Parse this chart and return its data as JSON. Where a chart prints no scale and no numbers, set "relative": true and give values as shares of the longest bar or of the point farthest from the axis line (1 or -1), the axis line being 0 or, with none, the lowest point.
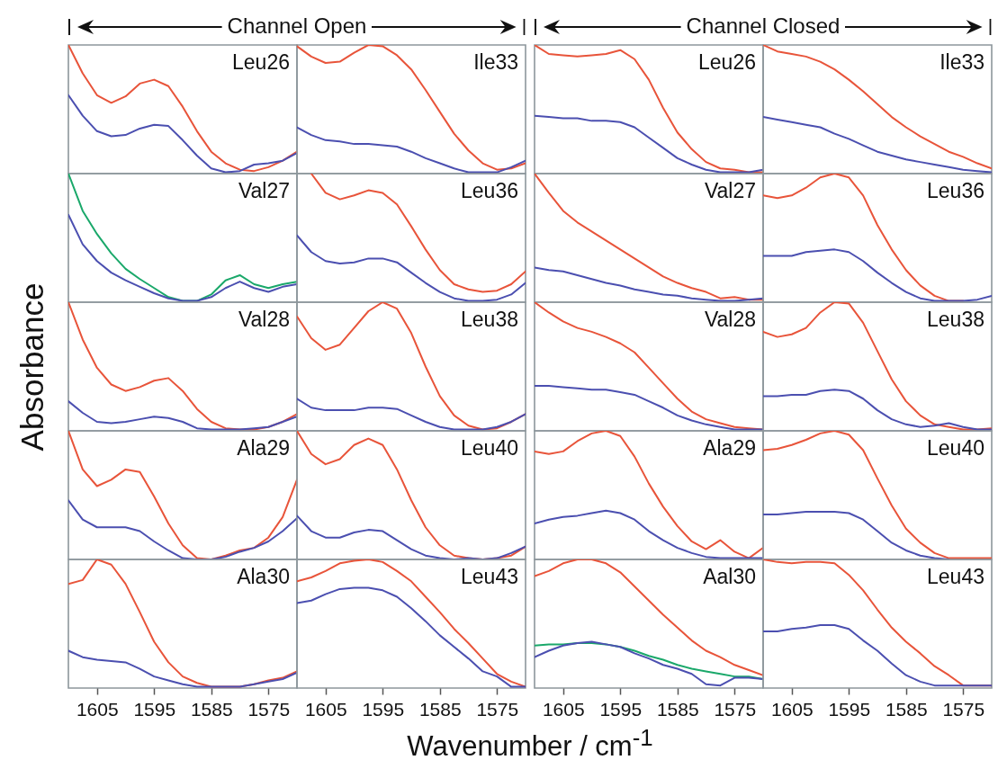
{
  "chart_data": [
    {
      "type": "line",
      "title": "Leu26",
      "relative": true,
      "annotations": [
        "Channel Open"
      ],
      "tick_labels": false,
      "xlim": [
        1610,
        1570
      ],
      "xticks": [
        1605,
        1595,
        1585,
        1575
      ],
      "x": [
        1610,
        1607.5,
        1605,
        1602.5,
        1600,
        1597.5,
        1595,
        1592.5,
        1590,
        1587.5,
        1585,
        1582.5,
        1580,
        1577.5,
        1575,
        1572.5,
        1570
      ],
      "series": [
        {
          "color": "#e8543a",
          "values": [
            1,
            0.78,
            0.61,
            0.55,
            0.6,
            0.7,
            0.73,
            0.68,
            0.52,
            0.33,
            0.17,
            0.08,
            0.03,
            0.02,
            0.05,
            0.1,
            0.17
          ]
        },
        {
          "color": "#4b4fb0",
          "values": [
            0.61,
            0.45,
            0.33,
            0.29,
            0.3,
            0.35,
            0.38,
            0.37,
            0.26,
            0.14,
            0.04,
            0.01,
            0.02,
            0.07,
            0.08,
            0.1,
            0.16
          ]
        }
      ]
    },
    {
      "type": "line",
      "title": "Ile33",
      "relative": true,
      "tick_labels": false,
      "xlim": [
        1610,
        1570
      ],
      "xticks": [
        1605,
        1595,
        1585,
        1575
      ],
      "x": [
        1610,
        1607.5,
        1605,
        1602.5,
        1600,
        1597.5,
        1595,
        1592.5,
        1590,
        1587.5,
        1585,
        1582.5,
        1580,
        1577.5,
        1575,
        1572.5,
        1570
      ],
      "series": [
        {
          "color": "#e8543a",
          "values": [
            0.99,
            0.91,
            0.86,
            0.87,
            0.94,
            1,
            0.99,
            0.92,
            0.81,
            0.65,
            0.48,
            0.31,
            0.18,
            0.08,
            0.03,
            0.04,
            0.08
          ]
        },
        {
          "color": "#4b4fb0",
          "values": [
            0.36,
            0.3,
            0.26,
            0.25,
            0.23,
            0.23,
            0.22,
            0.21,
            0.17,
            0.12,
            0.08,
            0.04,
            0.01,
            0.01,
            0.01,
            0.05,
            0.1
          ]
        }
      ]
    },
    {
      "type": "line",
      "title": "Leu26",
      "relative": true,
      "annotations": [
        "Channel Closed"
      ],
      "tick_labels": false,
      "xlim": [
        1610,
        1570
      ],
      "xticks": [
        1605,
        1595,
        1585,
        1575
      ],
      "x": [
        1610,
        1607.5,
        1605,
        1602.5,
        1600,
        1597.5,
        1595,
        1592.5,
        1590,
        1587.5,
        1585,
        1582.5,
        1580,
        1577.5,
        1575,
        1572.5,
        1570
      ],
      "series": [
        {
          "color": "#e8543a",
          "values": [
            1,
            0.93,
            0.92,
            0.91,
            0.92,
            0.93,
            0.96,
            0.89,
            0.73,
            0.51,
            0.32,
            0.19,
            0.09,
            0.04,
            0.03,
            0.01,
            0.01
          ]
        },
        {
          "color": "#4b4fb0",
          "values": [
            0.45,
            0.44,
            0.43,
            0.43,
            0.41,
            0.41,
            0.4,
            0.36,
            0.28,
            0.2,
            0.12,
            0.07,
            0.03,
            0.01,
            0.01,
            0.01,
            0.03
          ]
        }
      ]
    },
    {
      "type": "line",
      "title": "Ile33",
      "relative": true,
      "tick_labels": false,
      "xlim": [
        1610,
        1570
      ],
      "xticks": [
        1605,
        1595,
        1585,
        1575
      ],
      "x": [
        1610,
        1607.5,
        1605,
        1602.5,
        1600,
        1597.5,
        1595,
        1592.5,
        1590,
        1587.5,
        1585,
        1582.5,
        1580,
        1577.5,
        1575,
        1572.5,
        1570
      ],
      "series": [
        {
          "color": "#e8543a",
          "values": [
            1,
            0.95,
            0.93,
            0.91,
            0.87,
            0.81,
            0.73,
            0.64,
            0.54,
            0.44,
            0.36,
            0.29,
            0.23,
            0.17,
            0.13,
            0.08,
            0.04
          ]
        },
        {
          "color": "#4b4fb0",
          "values": [
            0.44,
            0.42,
            0.4,
            0.38,
            0.36,
            0.31,
            0.27,
            0.22,
            0.17,
            0.14,
            0.11,
            0.09,
            0.07,
            0.05,
            0.03,
            0.02,
            0.01
          ]
        }
      ]
    },
    {
      "type": "line",
      "title": "Val27",
      "relative": true,
      "tick_labels": false,
      "xlim": [
        1610,
        1570
      ],
      "xticks": [
        1605,
        1595,
        1585,
        1575
      ],
      "x": [
        1610,
        1607.5,
        1605,
        1602.5,
        1600,
        1597.5,
        1595,
        1592.5,
        1590,
        1587.5,
        1585,
        1582.5,
        1580,
        1577.5,
        1575,
        1572.5,
        1570
      ],
      "series": [
        {
          "color": "#1aa86a",
          "values": [
            1,
            0.71,
            0.53,
            0.38,
            0.26,
            0.18,
            0.11,
            0.04,
            0.01,
            0.01,
            0.06,
            0.17,
            0.21,
            0.14,
            0.11,
            0.14,
            0.16
          ]
        },
        {
          "color": "#4b4fb0",
          "values": [
            0.68,
            0.45,
            0.32,
            0.23,
            0.17,
            0.12,
            0.07,
            0.03,
            0.01,
            0.01,
            0.04,
            0.11,
            0.16,
            0.11,
            0.08,
            0.12,
            0.14
          ]
        }
      ]
    },
    {
      "type": "line",
      "title": "Leu36",
      "relative": true,
      "tick_labels": false,
      "xlim": [
        1610,
        1570
      ],
      "xticks": [
        1605,
        1595,
        1585,
        1575
      ],
      "x": [
        1610,
        1607.5,
        1605,
        1602.5,
        1600,
        1597.5,
        1595,
        1592.5,
        1590,
        1587.5,
        1585,
        1582.5,
        1580,
        1577.5,
        1575,
        1572.5,
        1570
      ],
      "series": [
        {
          "color": "#e8543a",
          "values": [
            null,
            1,
            0.85,
            0.8,
            0.83,
            0.87,
            0.85,
            0.76,
            0.59,
            0.41,
            0.25,
            0.14,
            0.1,
            0.08,
            0.09,
            0.14,
            0.24
          ]
        },
        {
          "color": "#4b4fb0",
          "values": [
            0.52,
            0.39,
            0.32,
            0.3,
            0.31,
            0.34,
            0.34,
            0.31,
            0.23,
            0.15,
            0.08,
            0.03,
            0.01,
            0.01,
            0.02,
            0.06,
            0.15
          ]
        }
      ]
    },
    {
      "type": "line",
      "title": "Val27",
      "relative": true,
      "tick_labels": false,
      "xlim": [
        1610,
        1570
      ],
      "xticks": [
        1605,
        1595,
        1585,
        1575
      ],
      "x": [
        1610,
        1607.5,
        1605,
        1602.5,
        1600,
        1597.5,
        1595,
        1592.5,
        1590,
        1587.5,
        1585,
        1582.5,
        1580,
        1577.5,
        1575,
        1572.5,
        1570
      ],
      "series": [
        {
          "color": "#e8543a",
          "values": [
            1,
            0.85,
            0.71,
            0.62,
            0.55,
            0.48,
            0.41,
            0.34,
            0.27,
            0.2,
            0.15,
            0.11,
            0.08,
            0.03,
            0.04,
            0.02,
            0.02
          ]
        },
        {
          "color": "#4b4fb0",
          "values": [
            0.27,
            0.25,
            0.24,
            0.21,
            0.18,
            0.15,
            0.13,
            0.1,
            0.08,
            0.06,
            0.05,
            0.03,
            0.02,
            0.01,
            0.01,
            0.02,
            0.03
          ]
        }
      ]
    },
    {
      "type": "line",
      "title": "Leu36",
      "relative": true,
      "tick_labels": false,
      "xlim": [
        1610,
        1570
      ],
      "xticks": [
        1605,
        1595,
        1585,
        1575
      ],
      "x": [
        1610,
        1607.5,
        1605,
        1602.5,
        1600,
        1597.5,
        1595,
        1592.5,
        1590,
        1587.5,
        1585,
        1582.5,
        1580,
        1577.5,
        1575,
        1572.5,
        1570
      ],
      "series": [
        {
          "color": "#e8543a",
          "values": [
            0.83,
            0.81,
            0.83,
            0.89,
            0.97,
            1,
            0.97,
            0.83,
            0.6,
            0.41,
            0.25,
            0.13,
            0.05,
            0.01,
            0.01,
            null,
            null
          ]
        },
        {
          "color": "#4b4fb0",
          "values": [
            0.36,
            0.36,
            0.36,
            0.39,
            0.4,
            0.41,
            0.39,
            0.32,
            0.23,
            0.15,
            0.08,
            0.03,
            0.01,
            0.01,
            0.01,
            0.02,
            0.05
          ]
        }
      ]
    },
    {
      "type": "line",
      "title": "Val28",
      "relative": true,
      "tick_labels": false,
      "xlim": [
        1610,
        1570
      ],
      "xticks": [
        1605,
        1595,
        1585,
        1575
      ],
      "x": [
        1610,
        1607.5,
        1605,
        1602.5,
        1600,
        1597.5,
        1595,
        1592.5,
        1590,
        1587.5,
        1585,
        1582.5,
        1580,
        1577.5,
        1575,
        1572.5,
        1570
      ],
      "ylabel": "Absorbance",
      "series": [
        {
          "color": "#e8543a",
          "values": [
            1,
            0.71,
            0.49,
            0.36,
            0.31,
            0.34,
            0.39,
            0.41,
            0.31,
            0.17,
            0.07,
            0.02,
            0.01,
            0.01,
            0.03,
            0.07,
            0.13
          ]
        },
        {
          "color": "#4b4fb0",
          "values": [
            0.23,
            0.14,
            0.07,
            0.06,
            0.07,
            0.09,
            0.11,
            0.1,
            0.07,
            0.02,
            0.01,
            0.01,
            0.01,
            0.02,
            0.03,
            0.07,
            0.11
          ]
        }
      ]
    },
    {
      "type": "line",
      "title": "Leu38",
      "relative": true,
      "tick_labels": false,
      "xlim": [
        1610,
        1570
      ],
      "xticks": [
        1605,
        1595,
        1585,
        1575
      ],
      "x": [
        1610,
        1607.5,
        1605,
        1602.5,
        1600,
        1597.5,
        1595,
        1592.5,
        1590,
        1587.5,
        1585,
        1582.5,
        1580,
        1577.5,
        1575,
        1572.5,
        1570
      ],
      "series": [
        {
          "color": "#e8543a",
          "values": [
            0.89,
            0.72,
            0.63,
            0.67,
            0.8,
            0.93,
            1,
            0.95,
            0.76,
            0.5,
            0.27,
            0.12,
            0.04,
            0.01,
            0.02,
            0.07,
            0.13
          ]
        },
        {
          "color": "#4b4fb0",
          "values": [
            0.25,
            0.18,
            0.16,
            0.16,
            0.16,
            0.18,
            0.18,
            0.17,
            0.12,
            0.07,
            0.03,
            0.01,
            0.01,
            0.01,
            0.03,
            0.07,
            0.13
          ]
        }
      ]
    },
    {
      "type": "line",
      "title": "Val28",
      "relative": true,
      "tick_labels": false,
      "xlim": [
        1610,
        1570
      ],
      "xticks": [
        1605,
        1595,
        1585,
        1575
      ],
      "x": [
        1610,
        1607.5,
        1605,
        1602.5,
        1600,
        1597.5,
        1595,
        1592.5,
        1590,
        1587.5,
        1585,
        1582.5,
        1580,
        1577.5,
        1575,
        1572.5,
        1570
      ],
      "series": [
        {
          "color": "#e8543a",
          "values": [
            1,
            0.92,
            0.85,
            0.8,
            0.77,
            0.73,
            0.68,
            0.61,
            0.49,
            0.37,
            0.25,
            0.15,
            0.09,
            0.06,
            0.03,
            0.02,
            0.01
          ]
        },
        {
          "color": "#4b4fb0",
          "values": [
            0.35,
            0.35,
            0.34,
            0.33,
            0.32,
            0.32,
            0.3,
            0.28,
            0.23,
            0.18,
            0.12,
            0.08,
            0.05,
            0.03,
            0.01,
            0.01,
            0.01
          ]
        }
      ]
    },
    {
      "type": "line",
      "title": "Leu38",
      "relative": true,
      "tick_labels": false,
      "xlim": [
        1610,
        1570
      ],
      "xticks": [
        1605,
        1595,
        1585,
        1575
      ],
      "x": [
        1610,
        1607.5,
        1605,
        1602.5,
        1600,
        1597.5,
        1595,
        1592.5,
        1590,
        1587.5,
        1585,
        1582.5,
        1580,
        1577.5,
        1575,
        1572.5,
        1570
      ],
      "series": [
        {
          "color": "#e8543a",
          "values": [
            0.77,
            0.73,
            0.75,
            0.8,
            0.92,
            1,
            0.99,
            0.84,
            0.62,
            0.4,
            0.23,
            0.12,
            0.05,
            0.03,
            0.01,
            0.01,
            0.02
          ]
        },
        {
          "color": "#4b4fb0",
          "values": [
            0.27,
            0.27,
            0.28,
            0.28,
            0.31,
            0.32,
            0.31,
            0.25,
            0.16,
            0.09,
            0.05,
            0.03,
            0.04,
            0.06,
            0.03,
            0.01,
            0.01
          ]
        }
      ]
    },
    {
      "type": "line",
      "title": "Ala29",
      "relative": true,
      "tick_labels": false,
      "xlim": [
        1610,
        1570
      ],
      "xticks": [
        1605,
        1595,
        1585,
        1575
      ],
      "x": [
        1610,
        1607.5,
        1605,
        1602.5,
        1600,
        1597.5,
        1595,
        1592.5,
        1590,
        1587.5,
        1585,
        1582.5,
        1580,
        1577.5,
        1575,
        1572.5,
        1570
      ],
      "series": [
        {
          "color": "#e8543a",
          "values": [
            1,
            0.7,
            0.57,
            0.62,
            0.7,
            0.68,
            0.49,
            0.28,
            0.11,
            0.01,
            0,
            0.03,
            0.07,
            0.09,
            0.17,
            0.33,
            0.62
          ]
        },
        {
          "color": "#4b4fb0",
          "values": [
            0.46,
            0.31,
            0.25,
            0.25,
            0.25,
            0.22,
            0.14,
            0.07,
            0.01,
            0,
            0,
            0.02,
            0.06,
            0.09,
            0.14,
            0.22,
            0.32
          ]
        }
      ]
    },
    {
      "type": "line",
      "title": "Leu40",
      "relative": true,
      "tick_labels": false,
      "xlim": [
        1610,
        1570
      ],
      "xticks": [
        1605,
        1595,
        1585,
        1575
      ],
      "x": [
        1610,
        1607.5,
        1605,
        1602.5,
        1600,
        1597.5,
        1595,
        1592.5,
        1590,
        1587.5,
        1585,
        1582.5,
        1580,
        1577.5,
        1575,
        1572.5,
        1570
      ],
      "series": [
        {
          "color": "#e8543a",
          "values": [
            1,
            0.82,
            0.74,
            0.78,
            0.89,
            0.94,
            0.89,
            0.7,
            0.46,
            0.25,
            0.11,
            0.03,
            0.01,
            0,
            0.01,
            0.03,
            0.1
          ]
        },
        {
          "color": "#4b4fb0",
          "values": [
            0.34,
            0.22,
            0.17,
            0.17,
            0.21,
            0.23,
            0.22,
            0.15,
            0.08,
            0.03,
            0.01,
            0,
            0.01,
            0,
            0.01,
            0.05,
            0.1
          ]
        }
      ]
    },
    {
      "type": "line",
      "title": "Ala29",
      "relative": true,
      "tick_labels": false,
      "xlim": [
        1610,
        1570
      ],
      "xticks": [
        1605,
        1595,
        1585,
        1575
      ],
      "x": [
        1610,
        1607.5,
        1605,
        1602.5,
        1600,
        1597.5,
        1595,
        1592.5,
        1590,
        1587.5,
        1585,
        1582.5,
        1580,
        1577.5,
        1575,
        1572.5,
        1570
      ],
      "series": [
        {
          "color": "#e8543a",
          "values": [
            0.84,
            0.82,
            0.84,
            0.92,
            0.98,
            1,
            0.96,
            0.8,
            0.59,
            0.41,
            0.26,
            0.14,
            0.08,
            0.15,
            0.06,
            0.01,
            0.09
          ]
        },
        {
          "color": "#4b4fb0",
          "values": [
            0.28,
            0.31,
            0.33,
            0.34,
            0.36,
            0.38,
            0.36,
            0.31,
            0.22,
            0.15,
            0.09,
            0.05,
            0.02,
            0.01,
            0.01,
            0.01,
            0.01
          ]
        }
      ]
    },
    {
      "type": "line",
      "title": "Leu40",
      "relative": true,
      "tick_labels": false,
      "xlim": [
        1610,
        1570
      ],
      "xticks": [
        1605,
        1595,
        1585,
        1575
      ],
      "x": [
        1610,
        1607.5,
        1605,
        1602.5,
        1600,
        1597.5,
        1595,
        1592.5,
        1590,
        1587.5,
        1585,
        1582.5,
        1580,
        1577.5,
        1575,
        1572.5,
        1570
      ],
      "series": [
        {
          "color": "#e8543a",
          "values": [
            0.85,
            0.86,
            0.89,
            0.93,
            0.98,
            1,
            0.97,
            0.85,
            0.63,
            0.42,
            0.24,
            0.13,
            0.05,
            0.01,
            0.01,
            0.01,
            0.01
          ]
        },
        {
          "color": "#4b4fb0",
          "values": [
            0.35,
            0.35,
            0.36,
            0.37,
            0.37,
            0.37,
            0.36,
            0.31,
            0.22,
            0.13,
            0.07,
            0.03,
            0.01,
            0,
            null,
            null,
            null
          ]
        }
      ]
    },
    {
      "type": "line",
      "title": "Ala30",
      "relative": true,
      "tick_labels": "x",
      "xlim": [
        1610,
        1570
      ],
      "xticks": [
        1605,
        1595,
        1585,
        1575
      ],
      "x": [
        1610,
        1607.5,
        1605,
        1602.5,
        1600,
        1597.5,
        1595,
        1592.5,
        1590,
        1587.5,
        1585,
        1582.5,
        1580,
        1577.5,
        1575,
        1572.5,
        1570
      ],
      "series": [
        {
          "color": "#e8543a",
          "values": [
            0.81,
            0.84,
            1,
            0.96,
            0.81,
            0.59,
            0.36,
            0.2,
            0.09,
            0.04,
            0.01,
            0.01,
            0.01,
            0.03,
            0.06,
            0.08,
            0.13
          ]
        },
        {
          "color": "#4b4fb0",
          "values": [
            0.29,
            0.24,
            0.22,
            0.21,
            0.2,
            0.15,
            0.09,
            0.06,
            0.03,
            0.01,
            0.01,
            0.01,
            0.01,
            0.03,
            0.05,
            0.07,
            0.12
          ]
        }
      ]
    },
    {
      "type": "line",
      "title": "Leu43",
      "relative": true,
      "tick_labels": "x",
      "xlim": [
        1610,
        1570
      ],
      "xticks": [
        1605,
        1595,
        1585,
        1575
      ],
      "x": [
        1610,
        1607.5,
        1605,
        1602.5,
        1600,
        1597.5,
        1595,
        1592.5,
        1590,
        1587.5,
        1585,
        1582.5,
        1580,
        1577.5,
        1575,
        1572.5,
        1570
      ],
      "xlabel": "Wavenumber / cm$^{-1}$",
      "series": [
        {
          "color": "#e8543a",
          "values": [
            0.83,
            0.86,
            0.91,
            0.97,
            0.99,
            1,
            0.98,
            0.91,
            0.83,
            0.71,
            0.59,
            0.46,
            0.35,
            0.23,
            0.11,
            0.05,
            0.01
          ]
        },
        {
          "color": "#4b4fb0",
          "values": [
            0.66,
            0.68,
            0.73,
            0.77,
            0.78,
            0.78,
            0.76,
            0.71,
            0.62,
            0.52,
            0.41,
            0.32,
            0.23,
            0.13,
            0.09,
            0.01,
            0.01
          ]
        }
      ]
    },
    {
      "type": "line",
      "title": "Aal30",
      "relative": true,
      "tick_labels": "x",
      "xlim": [
        1610,
        1570
      ],
      "xticks": [
        1605,
        1595,
        1585,
        1575
      ],
      "x": [
        1610,
        1607.5,
        1605,
        1602.5,
        1600,
        1597.5,
        1595,
        1592.5,
        1590,
        1587.5,
        1585,
        1582.5,
        1580,
        1577.5,
        1575,
        1572.5,
        1570
      ],
      "series": [
        {
          "color": "#e8543a",
          "values": [
            0.87,
            0.91,
            0.97,
            1,
            1,
            0.97,
            0.9,
            0.79,
            0.68,
            0.57,
            0.47,
            0.37,
            0.29,
            0.24,
            0.18,
            0.14,
            0.1
          ]
        },
        {
          "color": "#1aa86a",
          "values": [
            0.33,
            0.34,
            0.34,
            0.35,
            0.35,
            0.34,
            0.32,
            0.29,
            0.25,
            0.22,
            0.18,
            0.15,
            0.13,
            0.11,
            0.09,
            0.09,
            0.07
          ]
        },
        {
          "color": "#4b4fb0",
          "values": [
            0.24,
            0.29,
            0.33,
            0.35,
            0.36,
            0.34,
            0.32,
            0.27,
            0.23,
            0.18,
            0.15,
            0.11,
            0.03,
            0.02,
            0.08,
            0.08,
            0.07
          ]
        }
      ]
    },
    {
      "type": "line",
      "title": "Leu43",
      "relative": true,
      "tick_labels": "x",
      "xlim": [
        1610,
        1570
      ],
      "xticks": [
        1605,
        1595,
        1585,
        1575
      ],
      "x": [
        1610,
        1607.5,
        1605,
        1602.5,
        1600,
        1597.5,
        1595,
        1592.5,
        1590,
        1587.5,
        1585,
        1582.5,
        1580,
        1577.5,
        1575,
        1572.5,
        1570
      ],
      "series": [
        {
          "color": "#e8543a",
          "values": [
            1,
            0.98,
            0.97,
            0.98,
            0.98,
            0.97,
            0.88,
            0.76,
            0.61,
            0.47,
            0.36,
            0.27,
            0.17,
            0.1,
            0.02,
            0.02,
            0.02
          ]
        },
        {
          "color": "#4b4fb0",
          "values": [
            0.44,
            0.44,
            0.46,
            0.47,
            0.49,
            0.49,
            0.46,
            0.37,
            0.29,
            0.19,
            0.1,
            0.05,
            0.02,
            0.02,
            0.02,
            0.02,
            0.02
          ]
        }
      ]
    }
  ]
}
